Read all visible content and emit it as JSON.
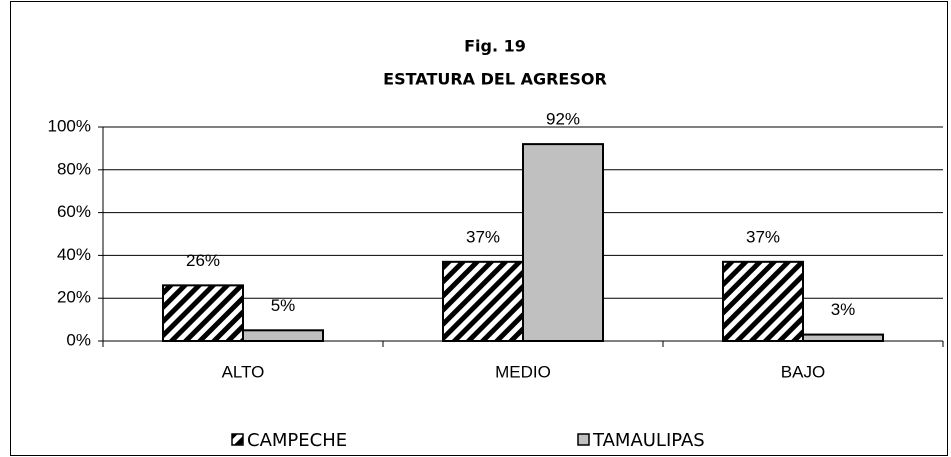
{
  "chart_data": {
    "type": "bar",
    "title": "Fig. 19",
    "subtitle": "ESTATURA DEL AGRESOR",
    "categories": [
      "ALTO",
      "MEDIO",
      "BAJO"
    ],
    "series": [
      {
        "name": "CAMPECHE",
        "color": "#000000",
        "hatch": true,
        "values": [
          26,
          37,
          37
        ],
        "value_labels": [
          "26%",
          "37%",
          "37%"
        ]
      },
      {
        "name": "TAMAULIPAS",
        "color": "#c0c0c0",
        "hatch": false,
        "values": [
          5,
          92,
          3
        ],
        "value_labels": [
          "5%",
          "92%",
          "3%"
        ]
      }
    ],
    "ylim": [
      0,
      100
    ],
    "yticks": [
      {
        "value": 0,
        "label": "0%"
      },
      {
        "value": 20,
        "label": "20%"
      },
      {
        "value": 40,
        "label": "40%"
      },
      {
        "value": 60,
        "label": "60%"
      },
      {
        "value": 80,
        "label": "80%"
      },
      {
        "value": 100,
        "label": "100%"
      }
    ],
    "grid": true,
    "legend": "bottom"
  }
}
